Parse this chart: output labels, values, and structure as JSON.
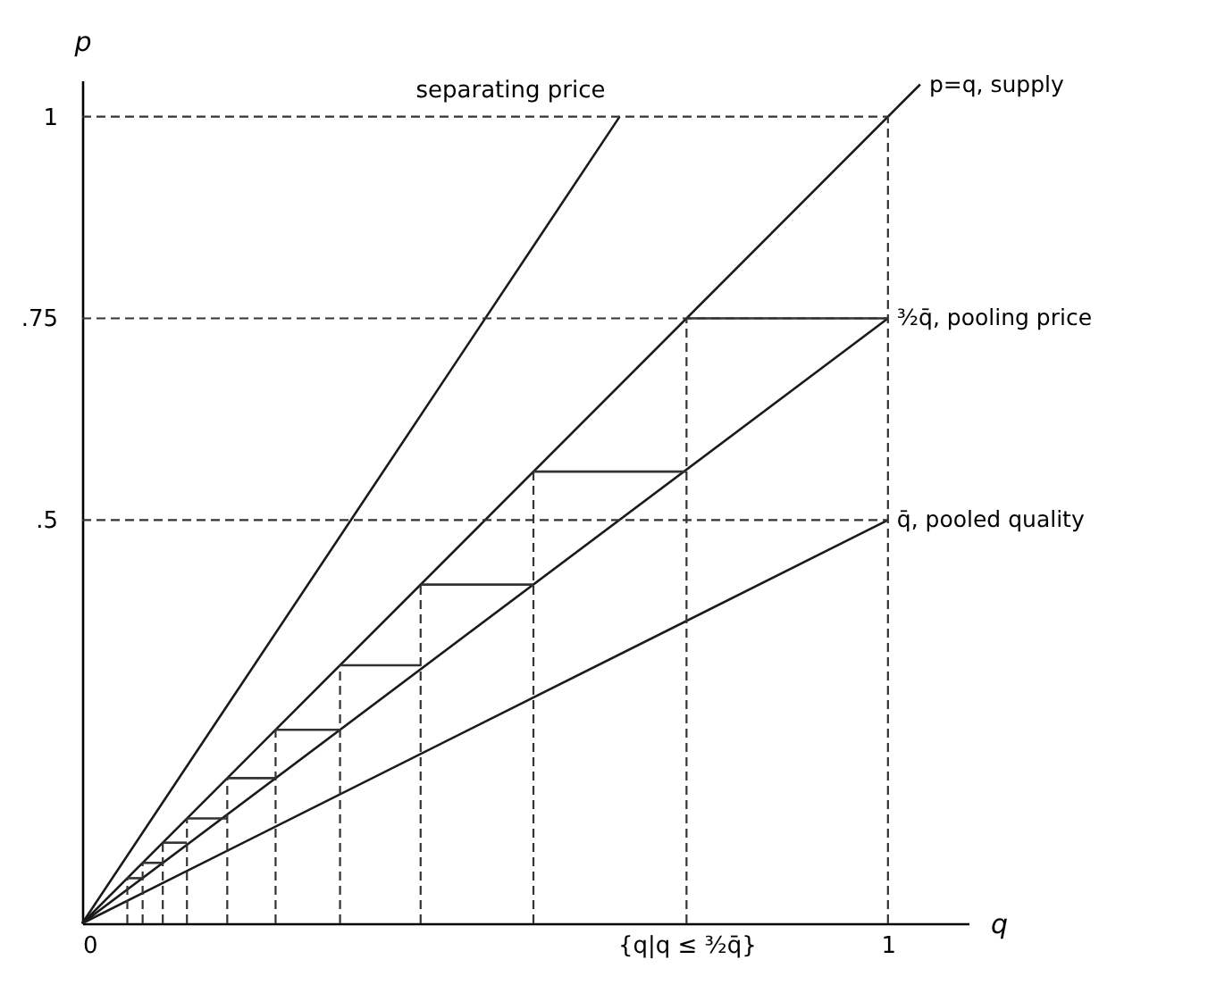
{
  "chart_data": {
    "type": "line",
    "xlabel": "q",
    "ylabel": "p",
    "xlim": [
      0,
      1.1
    ],
    "ylim": [
      0,
      1.045
    ],
    "xticks": [
      0,
      {
        "value": 0.75,
        "label": "{q|q ≤ ³⁄₂q̄}"
      },
      1
    ],
    "yticks": [
      {
        "value": 0.5,
        "label": ".5"
      },
      {
        "value": 0.75,
        "label": ".75"
      },
      1
    ],
    "grid": false,
    "marker": "none",
    "series": [
      {
        "name": "separating price",
        "color": "#1a1a1a",
        "x": [
          0,
          0.667
        ],
        "values": [
          0,
          1
        ]
      },
      {
        "name": "p=q, supply",
        "color": "#1a1a1a",
        "x": [
          0,
          1.04
        ],
        "values": [
          0,
          1.04
        ]
      },
      {
        "name": "³⁄₂q̄, pooling price",
        "color": "#1a1a1a",
        "x": [
          0,
          1
        ],
        "values": [
          0,
          0.75
        ]
      },
      {
        "name": "q̄, pooled quality",
        "color": "#1a1a1a",
        "x": [
          0,
          1
        ],
        "values": [
          0,
          0.5
        ]
      },
      {
        "color": "#333333",
        "line_style": "dashed",
        "x": [
          0,
          1
        ],
        "values": [
          1,
          1
        ]
      },
      {
        "color": "#333333",
        "line_style": "dashed",
        "x": [
          0,
          1
        ],
        "values": [
          0.75,
          0.75
        ]
      },
      {
        "color": "#333333",
        "line_style": "dashed",
        "x": [
          0,
          1
        ],
        "values": [
          0.5,
          0.5
        ]
      },
      {
        "color": "#333333",
        "line_style": "dashed",
        "x": [
          1,
          1
        ],
        "values": [
          0,
          1
        ]
      },
      {
        "color": "#333333",
        "line_style": "dashed",
        "x": [
          0.75,
          0.75
        ],
        "values": [
          0,
          0.75
        ]
      },
      {
        "color": "#333333",
        "line_style": "dashed",
        "x": [
          0.56,
          0.56
        ],
        "values": [
          0,
          0.56
        ]
      },
      {
        "color": "#333333",
        "line_style": "dashed",
        "x": [
          0.42,
          0.42
        ],
        "values": [
          0,
          0.42
        ]
      },
      {
        "color": "#333333",
        "line_style": "dashed",
        "x": [
          0.32,
          0.32
        ],
        "values": [
          0,
          0.32
        ]
      },
      {
        "color": "#333333",
        "line_style": "dashed",
        "x": [
          0.24,
          0.24
        ],
        "values": [
          0,
          0.24
        ]
      },
      {
        "color": "#333333",
        "line_style": "dashed",
        "x": [
          0.18,
          0.18
        ],
        "values": [
          0,
          0.18
        ]
      },
      {
        "color": "#333333",
        "line_style": "dashed",
        "x": [
          0.13,
          0.13
        ],
        "values": [
          0,
          0.13
        ]
      },
      {
        "color": "#333333",
        "line_style": "dashed",
        "x": [
          0.1,
          0.1
        ],
        "values": [
          0,
          0.1
        ]
      },
      {
        "color": "#333333",
        "line_style": "dashed",
        "x": [
          0.075,
          0.075
        ],
        "values": [
          0,
          0.075
        ]
      },
      {
        "color": "#333333",
        "line_style": "dashed",
        "x": [
          0.056,
          0.056
        ],
        "values": [
          0,
          0.056
        ]
      },
      {
        "color": "#333333",
        "x": [
          1,
          0.75
        ],
        "values": [
          0.75,
          0.75
        ]
      },
      {
        "color": "#333333",
        "x": [
          0.75,
          0.56
        ],
        "values": [
          0.56,
          0.56
        ]
      },
      {
        "color": "#333333",
        "x": [
          0.56,
          0.42
        ],
        "values": [
          0.42,
          0.42
        ]
      },
      {
        "color": "#333333",
        "x": [
          0.42,
          0.32
        ],
        "values": [
          0.32,
          0.32
        ]
      },
      {
        "color": "#333333",
        "x": [
          0.32,
          0.24
        ],
        "values": [
          0.24,
          0.24
        ]
      },
      {
        "color": "#333333",
        "x": [
          0.24,
          0.18
        ],
        "values": [
          0.18,
          0.18
        ]
      },
      {
        "color": "#333333",
        "x": [
          0.18,
          0.13
        ],
        "values": [
          0.13,
          0.13
        ]
      },
      {
        "color": "#333333",
        "x": [
          0.13,
          0.1
        ],
        "values": [
          0.1,
          0.1
        ]
      },
      {
        "color": "#333333",
        "x": [
          0.1,
          0.075
        ],
        "values": [
          0.075,
          0.075
        ]
      },
      {
        "color": "#333333",
        "x": [
          0.075,
          0.056
        ],
        "values": [
          0.056,
          0.056
        ]
      }
    ]
  }
}
